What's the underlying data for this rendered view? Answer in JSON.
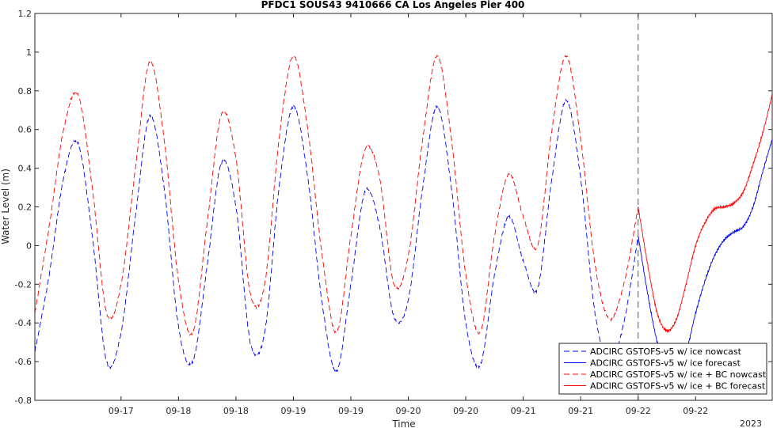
{
  "chart_data": {
    "type": "line",
    "title": "PFDC1 SOUS43 9410666 CA Los Angeles Pier 400",
    "xlabel": "Time",
    "ylabel": "Water Level (m)",
    "year_label": "2023",
    "ylim": [
      -0.8,
      1.2
    ],
    "yticks": [
      "-0.8",
      "-0.6",
      "-0.4",
      "-0.2",
      "0",
      "0.2",
      "0.4",
      "0.6",
      "0.8",
      "1",
      "1.2"
    ],
    "xlim": [
      "2023-09-16 06:00",
      "2023-09-22 16:00"
    ],
    "xticks": [
      {
        "t": "2023-09-17 00:00",
        "label": "09-17"
      },
      {
        "t": "2023-09-17 12:00",
        "label": "09-18"
      },
      {
        "t": "2023-09-18 00:00",
        "label": "09-18"
      },
      {
        "t": "2023-09-18 12:00",
        "label": "09-19"
      },
      {
        "t": "2023-09-19 00:00",
        "label": "09-19"
      },
      {
        "t": "2023-09-19 12:00",
        "label": "09-20"
      },
      {
        "t": "2023-09-20 00:00",
        "label": "09-20"
      },
      {
        "t": "2023-09-20 12:00",
        "label": "09-21"
      },
      {
        "t": "2023-09-21 00:00",
        "label": "09-21"
      },
      {
        "t": "2023-09-21 12:00",
        "label": "09-22"
      },
      {
        "t": "2023-09-22 00:00",
        "label": "09-22"
      }
    ],
    "nowcast_end": "2023-09-21 12:00",
    "grid": false,
    "legend_position": "bottom-right",
    "series": [
      {
        "name": "ADCIRC GSTOFS-v5 w/ ice nowcast",
        "color": "#0000ff",
        "dash": true,
        "x": [
          "2023-09-16 06:00",
          "2023-09-16 09:00",
          "2023-09-16 12:00",
          "2023-09-16 15:00",
          "2023-09-16 18:00",
          "2023-09-16 21:00",
          "2023-09-17 00:00",
          "2023-09-17 03:00",
          "2023-09-17 06:00",
          "2023-09-17 09:00",
          "2023-09-17 12:00",
          "2023-09-17 15:00",
          "2023-09-17 18:00",
          "2023-09-17 21:00",
          "2023-09-18 00:00",
          "2023-09-18 03:00",
          "2023-09-18 06:00",
          "2023-09-18 09:00",
          "2023-09-18 12:00",
          "2023-09-18 15:00",
          "2023-09-18 18:00",
          "2023-09-18 21:00",
          "2023-09-19 00:00",
          "2023-09-19 03:00",
          "2023-09-19 06:00",
          "2023-09-19 09:00",
          "2023-09-19 12:00",
          "2023-09-19 15:00",
          "2023-09-19 18:00",
          "2023-09-19 21:00",
          "2023-09-20 00:00",
          "2023-09-20 03:00",
          "2023-09-20 06:00",
          "2023-09-20 09:00",
          "2023-09-20 12:00",
          "2023-09-20 15:00",
          "2023-09-20 18:00",
          "2023-09-20 21:00",
          "2023-09-21 00:00",
          "2023-09-21 03:00",
          "2023-09-21 06:00",
          "2023-09-21 09:00",
          "2023-09-21 12:00"
        ],
        "y": [
          -0.55,
          -0.15,
          0.35,
          0.53,
          0.05,
          -0.6,
          -0.45,
          0.15,
          0.67,
          0.3,
          -0.42,
          -0.6,
          -0.1,
          0.43,
          0.2,
          -0.5,
          -0.45,
          0.3,
          0.72,
          0.35,
          -0.3,
          -0.65,
          -0.2,
          0.28,
          0.1,
          -0.37,
          -0.28,
          0.3,
          0.72,
          0.3,
          -0.4,
          -0.62,
          -0.15,
          0.15,
          -0.08,
          -0.22,
          0.35,
          0.75,
          0.35,
          -0.35,
          -0.6,
          -0.4,
          0.05
        ]
      },
      {
        "name": "ADCIRC GSTOFS-v5 w/ ice forecast",
        "color": "#0000ff",
        "dash": false,
        "x": [
          "2023-09-21 12:00",
          "2023-09-21 14:00",
          "2023-09-21 16:00",
          "2023-09-21 18:00",
          "2023-09-21 20:00",
          "2023-09-21 22:00",
          "2023-09-22 00:00",
          "2023-09-22 02:00",
          "2023-09-22 04:00",
          "2023-09-22 06:00",
          "2023-09-22 08:00",
          "2023-09-22 10:00",
          "2023-09-22 12:00",
          "2023-09-22 14:00",
          "2023-09-22 16:00"
        ],
        "y": [
          0.05,
          -0.25,
          -0.5,
          -0.62,
          -0.62,
          -0.55,
          -0.35,
          -0.18,
          -0.05,
          0.03,
          0.07,
          0.1,
          0.2,
          0.38,
          0.55
        ]
      },
      {
        "name": "ADCIRC GSTOFS-v5 w/ ice + BC nowcast",
        "color": "#ff0000",
        "dash": true,
        "x": [
          "2023-09-16 06:00",
          "2023-09-16 09:00",
          "2023-09-16 12:00",
          "2023-09-16 15:00",
          "2023-09-16 18:00",
          "2023-09-16 21:00",
          "2023-09-17 00:00",
          "2023-09-17 03:00",
          "2023-09-17 06:00",
          "2023-09-17 09:00",
          "2023-09-17 12:00",
          "2023-09-17 15:00",
          "2023-09-17 18:00",
          "2023-09-17 21:00",
          "2023-09-18 00:00",
          "2023-09-18 03:00",
          "2023-09-18 06:00",
          "2023-09-18 09:00",
          "2023-09-18 12:00",
          "2023-09-18 15:00",
          "2023-09-18 18:00",
          "2023-09-18 21:00",
          "2023-09-19 00:00",
          "2023-09-19 03:00",
          "2023-09-19 06:00",
          "2023-09-19 09:00",
          "2023-09-19 12:00",
          "2023-09-19 15:00",
          "2023-09-19 18:00",
          "2023-09-19 21:00",
          "2023-09-20 00:00",
          "2023-09-20 03:00",
          "2023-09-20 06:00",
          "2023-09-20 09:00",
          "2023-09-20 12:00",
          "2023-09-20 15:00",
          "2023-09-20 18:00",
          "2023-09-20 21:00",
          "2023-09-21 00:00",
          "2023-09-21 03:00",
          "2023-09-21 06:00",
          "2023-09-21 09:00",
          "2023-09-21 12:00"
        ],
        "y": [
          -0.35,
          0.1,
          0.6,
          0.78,
          0.3,
          -0.35,
          -0.2,
          0.4,
          0.95,
          0.55,
          -0.18,
          -0.45,
          0.12,
          0.68,
          0.45,
          -0.25,
          -0.2,
          0.55,
          0.98,
          0.6,
          -0.05,
          -0.45,
          0.05,
          0.5,
          0.35,
          -0.2,
          -0.05,
          0.55,
          0.98,
          0.55,
          -0.15,
          -0.45,
          0.05,
          0.37,
          0.15,
          0.0,
          0.6,
          0.98,
          0.55,
          -0.1,
          -0.38,
          -0.2,
          0.2
        ]
      },
      {
        "name": "ADCIRC GSTOFS-v5 w/ ice + BC forecast",
        "color": "#ff0000",
        "dash": false,
        "x": [
          "2023-09-21 12:00",
          "2023-09-21 14:00",
          "2023-09-21 16:00",
          "2023-09-21 18:00",
          "2023-09-21 20:00",
          "2023-09-21 22:00",
          "2023-09-22 00:00",
          "2023-09-22 02:00",
          "2023-09-22 04:00",
          "2023-09-22 06:00",
          "2023-09-22 08:00",
          "2023-09-22 10:00",
          "2023-09-22 12:00",
          "2023-09-22 14:00",
          "2023-09-22 16:00"
        ],
        "y": [
          0.2,
          -0.1,
          -0.35,
          -0.44,
          -0.38,
          -0.2,
          0.0,
          0.12,
          0.19,
          0.2,
          0.22,
          0.28,
          0.42,
          0.58,
          0.78
        ]
      }
    ]
  }
}
